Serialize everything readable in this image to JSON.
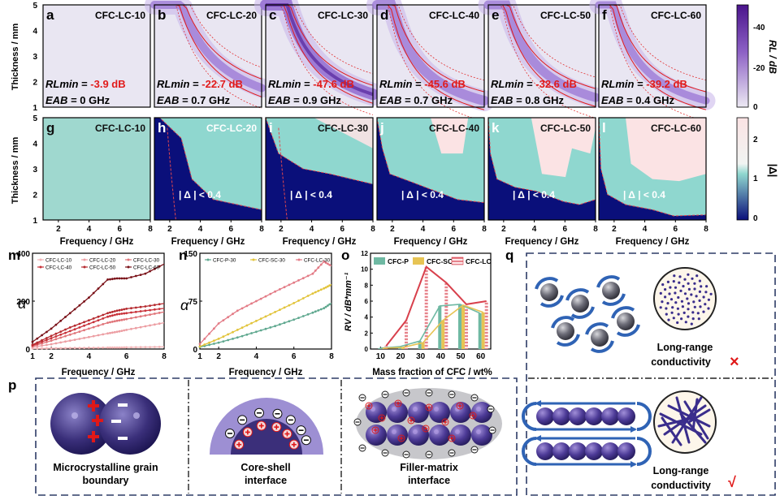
{
  "colors": {
    "rl_dark": "#4a148c",
    "rl_mid": "#9c7fd0",
    "rl_light": "#e9e6f2",
    "rl_red": "#e11b1b",
    "delta_navy": "#0a0f7a",
    "delta_teal": "#8fd7cf",
    "delta_pink": "#fbe3e4",
    "dash_border": "#2d3b66"
  },
  "row1": {
    "ylabel": "Thickness / mm",
    "yticks": [
      "1",
      "2",
      "3",
      "4",
      "5"
    ],
    "colorbar": {
      "label": "RL / dB",
      "ticks": [
        "-40",
        "-20",
        "0"
      ]
    },
    "panels": [
      {
        "letter": "a",
        "name": "CFC-LC-10",
        "rlmin": "-3.9 dB",
        "eab": "0 GHz"
      },
      {
        "letter": "b",
        "name": "CFC-LC-20",
        "rlmin": "-22.7 dB",
        "eab": "0.7 GHz"
      },
      {
        "letter": "c",
        "name": "CFC-LC-30",
        "rlmin": "-47.6 dB",
        "eab": "0.9 GHz"
      },
      {
        "letter": "d",
        "name": "CFC-LC-40",
        "rlmin": "-45.6 dB",
        "eab": "0.7 GHz"
      },
      {
        "letter": "e",
        "name": "CFC-LC-50",
        "rlmin": "-32.6 dB",
        "eab": "0.8 GHz"
      },
      {
        "letter": "f",
        "name": "CFC-LC-60",
        "rlmin": "-39.2 dB",
        "eab": "0.4 GHz"
      }
    ],
    "rlmin_label": "RLmin",
    "eab_label": "EAB",
    "eq": "="
  },
  "row2": {
    "ylabel": "Thickness / mm",
    "xlabel": "Frequency / GHz",
    "yticks": [
      "1",
      "2",
      "3",
      "4",
      "5"
    ],
    "xticks": [
      "2",
      "4",
      "6",
      "8"
    ],
    "colorbar": {
      "label": "|Δ|",
      "ticks": [
        "2",
        "1",
        "0"
      ]
    },
    "delta_text": "| Δ | < 0.4",
    "panels": [
      {
        "letter": "g",
        "name": "CFC-LC-10"
      },
      {
        "letter": "h",
        "name": "CFC-LC-20"
      },
      {
        "letter": "i",
        "name": "CFC-LC-30"
      },
      {
        "letter": "j",
        "name": "CFC-LC-40"
      },
      {
        "letter": "k",
        "name": "CFC-LC-50"
      },
      {
        "letter": "l",
        "name": "CFC-LC-60"
      }
    ]
  },
  "chart_data": [
    {
      "panel": "m",
      "type": "line",
      "title": "",
      "xlabel": "Frequency / GHz",
      "ylabel": "α",
      "xlim": [
        1,
        8
      ],
      "ylim": [
        0,
        400
      ],
      "xticks": [
        "1",
        "2",
        "4",
        "6",
        "8"
      ],
      "yticks": [
        "0",
        "200",
        "400"
      ],
      "x": [
        1,
        2,
        3,
        4,
        5,
        5.5,
        6,
        7,
        8
      ],
      "series": [
        {
          "name": "CFC-LC-10",
          "color": "#f3b6b8",
          "values": [
            2,
            3,
            4,
            5,
            6,
            6,
            7,
            8,
            9
          ]
        },
        {
          "name": "CFC-LC-20",
          "color": "#ec9ea3",
          "values": [
            8,
            20,
            35,
            50,
            65,
            72,
            80,
            95,
            110
          ]
        },
        {
          "name": "CFC-LC-30",
          "color": "#e07479",
          "values": [
            12,
            35,
            60,
            85,
            110,
            118,
            125,
            140,
            155
          ]
        },
        {
          "name": "CFC-LC-40",
          "color": "#c8323a",
          "values": [
            15,
            45,
            75,
            105,
            135,
            145,
            150,
            160,
            170
          ]
        },
        {
          "name": "CFC-LC-50",
          "color": "#b52a2f",
          "values": [
            18,
            55,
            90,
            120,
            150,
            160,
            168,
            178,
            190
          ]
        },
        {
          "name": "CFC-LC-60",
          "color": "#7a1118",
          "values": [
            30,
            85,
            150,
            215,
            290,
            295,
            295,
            315,
            355
          ]
        }
      ]
    },
    {
      "panel": "n",
      "type": "line",
      "title": "",
      "xlabel": "Frequency / GHz",
      "ylabel": "α",
      "xlim": [
        1,
        8
      ],
      "ylim": [
        0,
        150
      ],
      "xticks": [
        "1",
        "2",
        "4",
        "6",
        "8"
      ],
      "yticks": [
        "0",
        "75",
        "150"
      ],
      "x": [
        1,
        2,
        3,
        4,
        5,
        6,
        7,
        7.6,
        8
      ],
      "series": [
        {
          "name": "CFC-P-30",
          "color": "#5fa88f",
          "values": [
            3,
            10,
            18,
            27,
            36,
            46,
            57,
            64,
            72
          ]
        },
        {
          "name": "CFC-SC-30",
          "color": "#e2c43b",
          "values": [
            4,
            16,
            30,
            44,
            58,
            72,
            87,
            95,
            101
          ]
        },
        {
          "name": "CFC-LC-30",
          "color": "#e37b86",
          "values": [
            8,
            40,
            60,
            75,
            90,
            104,
            118,
            137,
            130
          ]
        }
      ]
    },
    {
      "panel": "o",
      "type": "bar",
      "title": "",
      "xlabel": "Mass fraction of CFC / wt%",
      "ylabel": "RV / dB*mm⁻¹",
      "xlim": [
        5,
        65
      ],
      "ylim": [
        0,
        12
      ],
      "xticks": [
        "10",
        "20",
        "30",
        "40",
        "50",
        "60"
      ],
      "yticks": [
        "0",
        "2",
        "4",
        "6",
        "8",
        "10",
        "12"
      ],
      "categories": [
        "10",
        "20",
        "30",
        "40",
        "50",
        "60"
      ],
      "series": [
        {
          "name": "CFC-P",
          "color": "#6fb9a3",
          "values": [
            0.1,
            0.3,
            1.0,
            5.4,
            5.6,
            4.5
          ]
        },
        {
          "name": "CFC-SC",
          "color": "#e7c454",
          "values": [
            0.1,
            0.2,
            0.8,
            3.6,
            5.5,
            4.6
          ]
        },
        {
          "name": "CFC-LC",
          "color": "#d8404c",
          "values": [
            0.4,
            3.6,
            10.3,
            8.3,
            5.6,
            6.0
          ]
        }
      ]
    }
  ],
  "panel_p": {
    "letter": "p",
    "items": [
      {
        "label_line1": "Microcrystalline grain",
        "label_line2": "boundary"
      },
      {
        "label_line1": "Core-shell",
        "label_line2": "interface"
      },
      {
        "label_line1": "Filler-matrix",
        "label_line2": "interface"
      }
    ]
  },
  "panel_q": {
    "letter": "q",
    "top_label1": "Long-range",
    "top_label2": "conductivity",
    "top_mark": "×",
    "bottom_label1": "Long-range",
    "bottom_label2": "conductivity",
    "bottom_mark": "√"
  },
  "letters_mno": {
    "m": "m",
    "n": "n",
    "o": "o"
  }
}
